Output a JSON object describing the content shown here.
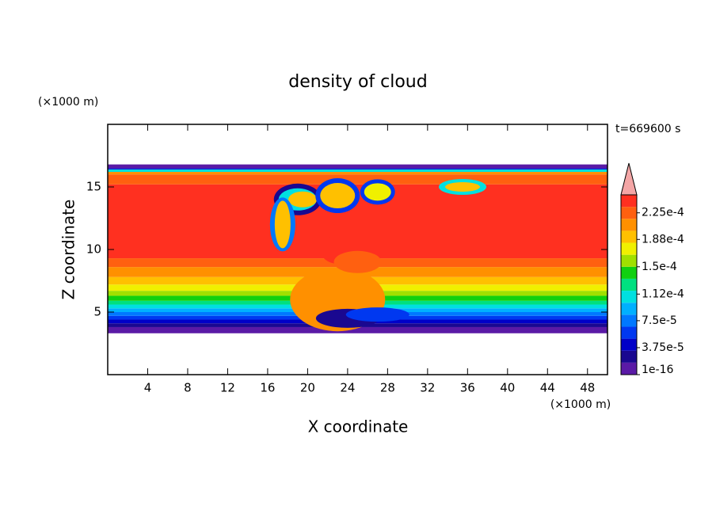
{
  "chart_data": {
    "type": "contour",
    "title": "density of cloud",
    "subtitle": "t=669600 s",
    "xlabel": "X coordinate",
    "ylabel": "Z coordinate",
    "xunit": "(×1000 m)",
    "yunit": "(×1000 m)",
    "xlim": [
      0,
      50
    ],
    "ylim": [
      0,
      20
    ],
    "xticks": [
      4,
      8,
      12,
      16,
      20,
      24,
      28,
      32,
      36,
      40,
      44,
      48
    ],
    "yticks": [
      5,
      10,
      15
    ],
    "colorbar": {
      "clim": [
        0,
        0.00025
      ],
      "ticks": [
        {
          "value": 1e-16,
          "label": "1e-16"
        },
        {
          "value": 3.75e-05,
          "label": "3.75e-5"
        },
        {
          "value": 7.5e-05,
          "label": "7.5e-5"
        },
        {
          "value": 0.000112,
          "label": "1.12e-4"
        },
        {
          "value": 0.00015,
          "label": "1.5e-4"
        },
        {
          "value": 0.000188,
          "label": "1.88e-4"
        },
        {
          "value": 0.000225,
          "label": "2.25e-4"
        }
      ],
      "colors": [
        "#5a1aa6",
        "#1a0890",
        "#0000c8",
        "#0038f0",
        "#0078ff",
        "#00b0ff",
        "#00e0e0",
        "#00e080",
        "#10d010",
        "#a0e000",
        "#f0f000",
        "#ffc000",
        "#ff9000",
        "#ff6010",
        "#ff3020"
      ],
      "extend_color": "#f4a6a6"
    }
  }
}
